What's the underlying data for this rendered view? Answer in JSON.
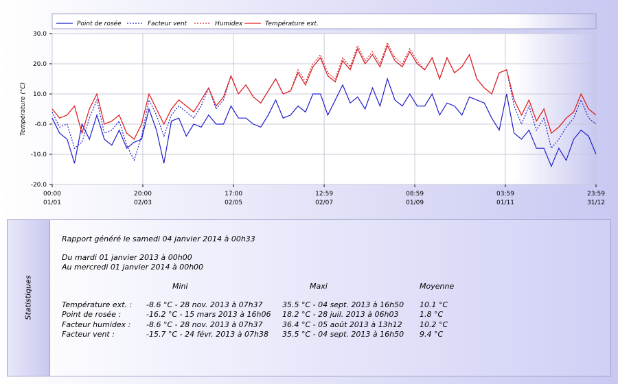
{
  "chart_data": {
    "type": "line",
    "y_label": "Température (°C)",
    "x": [
      0,
      5,
      10,
      15,
      20,
      25,
      30,
      35,
      40,
      45,
      50,
      55,
      60,
      65,
      70,
      75,
      80,
      85,
      90,
      95,
      100,
      105,
      110,
      115,
      120,
      125,
      130,
      135,
      140,
      145,
      150,
      155,
      160,
      165,
      170,
      175,
      180,
      185,
      190,
      195,
      200,
      205,
      210,
      215,
      220,
      225,
      230,
      235,
      240,
      245,
      250,
      255,
      260,
      265,
      270,
      275,
      280,
      285,
      290,
      295,
      300,
      305,
      310,
      315,
      320,
      325,
      330,
      335,
      340,
      345,
      350,
      355,
      360,
      365
    ],
    "xlim": [
      0,
      365
    ],
    "xticks": [
      {
        "value": 0,
        "label": [
          "00:00",
          "01/01"
        ]
      },
      {
        "value": 60.83,
        "label": [
          "20:00",
          "02/03"
        ]
      },
      {
        "value": 121.71,
        "label": [
          "17:00",
          "02/05"
        ]
      },
      {
        "value": 182.54,
        "label": [
          "12:59",
          "02/07"
        ]
      },
      {
        "value": 243.37,
        "label": [
          "08:59",
          "01/09"
        ]
      },
      {
        "value": 304.17,
        "label": [
          "03:59",
          "01/11"
        ]
      },
      {
        "value": 365,
        "label": [
          "23:59",
          "31/12"
        ]
      }
    ],
    "ylim": [
      -20,
      30
    ],
    "yticks": [
      {
        "value": 30,
        "label": "30.0"
      },
      {
        "value": 20,
        "label": "20.0"
      },
      {
        "value": 10,
        "label": "10.0"
      },
      {
        "value": 0,
        "label": "-0.0"
      },
      {
        "value": -10,
        "label": "-10.0"
      },
      {
        "value": -20,
        "label": "-20.0"
      }
    ],
    "grid": true,
    "series": [
      {
        "name": "Point de rosée",
        "color": "#1c1cc8",
        "style": "solid",
        "values": [
          2,
          -3,
          -5,
          -13,
          0,
          -5,
          3,
          -5,
          -7,
          -2,
          -8,
          -6,
          -5,
          5,
          -2,
          -13,
          1,
          2,
          -4,
          0,
          -1,
          3,
          0,
          0,
          6,
          2,
          2,
          0,
          -1,
          3,
          8,
          2,
          3,
          6,
          4,
          10,
          10,
          3,
          8,
          13,
          7,
          9,
          5,
          12,
          6,
          15,
          8,
          6,
          10,
          6,
          6,
          10,
          3,
          7,
          6,
          3,
          9,
          8,
          7,
          2,
          -2,
          10,
          -3,
          -5,
          -2,
          -8,
          -8,
          -14,
          -8,
          -12,
          -5,
          -2,
          -4,
          -10
        ]
      },
      {
        "name": "Facteur vent",
        "color": "#1c1cc8",
        "style": "dotted",
        "values": [
          4,
          -1,
          0,
          -8,
          -6,
          2,
          8,
          -3,
          -2,
          1,
          -7,
          -12,
          -4,
          8,
          3,
          -4,
          3,
          6,
          4,
          2,
          6,
          12,
          5,
          8,
          16,
          10,
          13,
          9,
          7,
          11,
          15,
          10,
          11,
          17,
          13,
          19,
          22,
          16,
          14,
          21,
          18,
          25,
          20,
          23,
          19,
          26,
          21,
          19,
          24,
          20,
          18,
          22,
          15,
          22,
          17,
          19,
          23,
          15,
          12,
          10,
          17,
          18,
          6,
          0,
          6,
          -2,
          2,
          -8,
          -5,
          -1,
          2,
          8,
          2,
          0
        ]
      },
      {
        "name": "Humidex",
        "color": "#e02020",
        "style": "dotted",
        "values": [
          5,
          2,
          3,
          6,
          -3,
          5,
          10,
          0,
          1,
          3,
          -3,
          -5,
          0,
          10,
          5,
          0,
          5,
          8,
          6,
          4,
          8,
          12,
          6,
          9,
          16,
          10,
          13,
          9,
          7,
          11,
          15,
          10,
          11,
          18,
          14,
          20,
          23,
          17,
          15,
          22,
          19,
          26,
          21,
          24,
          20,
          27,
          22,
          20,
          25,
          21,
          18,
          22,
          15,
          22,
          17,
          19,
          23,
          15,
          12,
          10,
          17,
          18,
          8,
          3,
          8,
          1,
          5,
          -3,
          -1,
          2,
          4,
          10,
          5,
          3
        ]
      },
      {
        "name": "Température ext.",
        "color": "#e02020",
        "style": "solid",
        "values": [
          5,
          2,
          3,
          6,
          -3,
          5,
          10,
          0,
          1,
          3,
          -3,
          -5,
          0,
          10,
          5,
          0,
          5,
          8,
          6,
          4,
          8,
          12,
          6,
          9,
          16,
          10,
          13,
          9,
          7,
          11,
          15,
          10,
          11,
          17,
          13,
          19,
          22,
          16,
          14,
          21,
          18,
          25,
          20,
          23,
          19,
          26,
          21,
          19,
          24,
          20,
          18,
          22,
          15,
          22,
          17,
          19,
          23,
          15,
          12,
          10,
          17,
          18,
          8,
          3,
          8,
          1,
          5,
          -3,
          -1,
          2,
          4,
          10,
          5,
          3
        ]
      }
    ]
  },
  "stats": {
    "title": "Statistiques",
    "generated": "Rapport généré le samedi 04 janvier 2014 à 00h33",
    "from": "Du mardi 01 janvier 2013 à 00h00",
    "to": "Au mercredi 01 janvier 2014 à 00h00",
    "headers": [
      "Mini",
      "Maxi",
      "Moyenne"
    ],
    "rows": [
      [
        "Température ext. :",
        "-8.6 °C - 28 nov. 2013 à 07h37",
        "35.5 °C - 04 sept. 2013 à 16h50",
        "10.1 °C"
      ],
      [
        "Point de rosée :",
        "-16.2 °C - 15 mars 2013 à 16h06",
        "18.2 °C - 28 juil. 2013 à 06h03",
        "1.8 °C"
      ],
      [
        "Facteur humidex :",
        "-8.6 °C - 28 nov. 2013 à 07h37",
        "36.4 °C - 05 août 2013 à 13h12",
        "10.2 °C"
      ],
      [
        "Facteur vent :",
        "-15.7 °C - 24 févr. 2013 à 07h38",
        "35.5 °C - 04 sept. 2013 à 16h50",
        "9.4 °C"
      ]
    ]
  }
}
